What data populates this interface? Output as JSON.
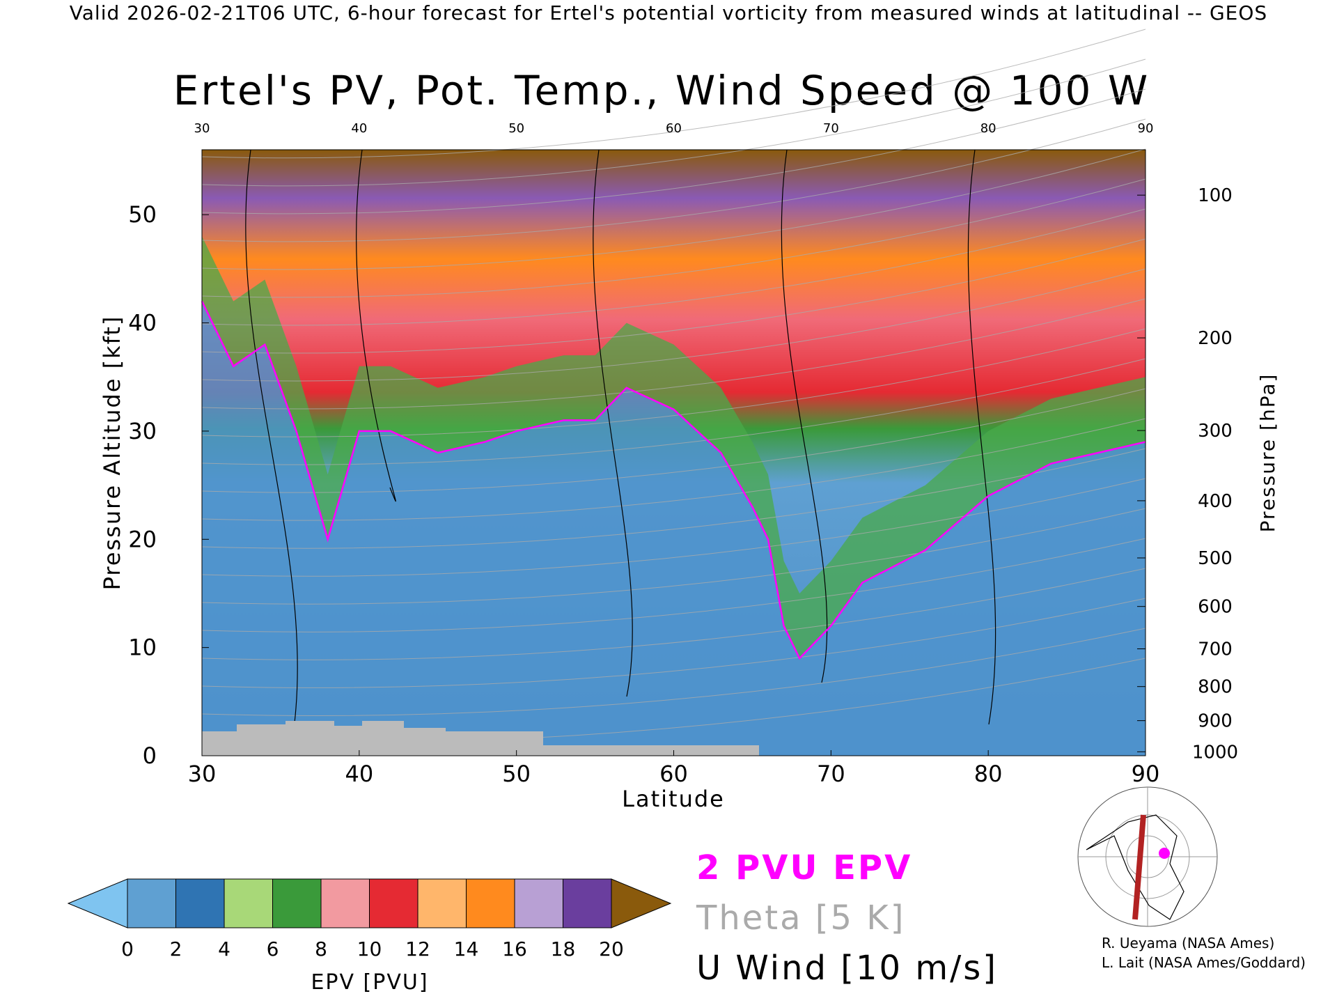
{
  "header_line": "Valid 2026-02-21T06 UTC, 6-hour forecast for Ertel's potential vorticity from measured winds at latitudinal -- GEOS",
  "chart_data": {
    "type": "heatmap",
    "title": "Ertel's PV, Pot. Temp., Wind Speed @ 100 W",
    "xlabel": "Latitude",
    "ylabel_left": "Pressure Altitude [kft]",
    "ylabel_right": "Pressure [hPa]",
    "xlim": [
      30,
      90
    ],
    "ylim_kft": [
      0,
      56
    ],
    "x_ticks": [
      30,
      40,
      50,
      60,
      70,
      80,
      90
    ],
    "y_ticks_kft": [
      0,
      10,
      20,
      30,
      40,
      50
    ],
    "pressure_ticks_hPa": [
      100,
      200,
      300,
      400,
      500,
      600,
      700,
      800,
      900,
      1000
    ],
    "tropopause_2pvu_kft": [
      [
        30,
        42
      ],
      [
        32,
        36
      ],
      [
        34,
        38
      ],
      [
        36,
        30
      ],
      [
        38,
        20
      ],
      [
        40,
        30
      ],
      [
        42,
        30
      ],
      [
        45,
        28
      ],
      [
        48,
        29
      ],
      [
        50,
        30
      ],
      [
        53,
        31
      ],
      [
        55,
        31
      ],
      [
        57,
        34
      ],
      [
        60,
        32
      ],
      [
        63,
        28
      ],
      [
        65,
        23
      ],
      [
        66,
        20
      ],
      [
        67,
        12
      ],
      [
        68,
        9
      ],
      [
        70,
        12
      ],
      [
        72,
        16
      ],
      [
        76,
        19
      ],
      [
        80,
        24
      ],
      [
        84,
        27
      ],
      [
        87,
        28
      ],
      [
        90,
        29
      ]
    ],
    "colorbar": {
      "label": "EPV [PVU]",
      "ticks": [
        0,
        2,
        4,
        6,
        8,
        10,
        12,
        14,
        16,
        18,
        20
      ],
      "colors": [
        "#5fa0d2",
        "#2f74b3",
        "#a8d878",
        "#3a9a3a",
        "#f29aa0",
        "#e52a33",
        "#ffb66b",
        "#ff8a1e",
        "#b8a0d4",
        "#6a3e9e",
        "#f5e88c"
      ],
      "under_color": "#7fc4f0",
      "over_color": "#8a5a0c"
    },
    "legend": {
      "epv": "2 PVU EPV",
      "theta": "Theta [5 K]",
      "wind": "U Wind [10 m/s]",
      "epv_color": "#ff00ff",
      "theta_color": "#aaaaaa",
      "wind_color": "#000000"
    }
  },
  "credits": [
    "R. Ueyama (NASA Ames)",
    "L. Lait (NASA Ames/Goddard)"
  ]
}
